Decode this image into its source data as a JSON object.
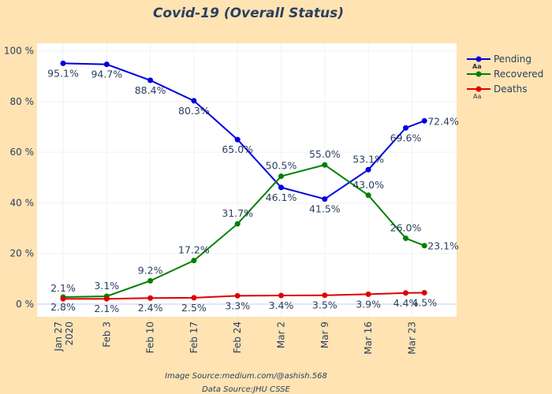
{
  "chart_data": {
    "type": "line",
    "title": "Covid-19 (Overall Status)",
    "xlabel": "",
    "ylabel": "",
    "x": [
      "2020-01-27",
      "2020-02-03",
      "2020-02-10",
      "2020-02-17",
      "2020-02-24",
      "2020-03-02",
      "2020-03-09",
      "2020-03-16",
      "2020-03-22",
      "2020-03-25"
    ],
    "x_ticks": [
      {
        "label": "Jan 27",
        "sub": "2020",
        "date": "2020-01-27"
      },
      {
        "label": "Feb 3",
        "date": "2020-02-03"
      },
      {
        "label": "Feb 10",
        "date": "2020-02-10"
      },
      {
        "label": "Feb 17",
        "date": "2020-02-17"
      },
      {
        "label": "Feb 24",
        "date": "2020-02-24"
      },
      {
        "label": "Mar 2",
        "date": "2020-03-02"
      },
      {
        "label": "Mar 9",
        "date": "2020-03-09"
      },
      {
        "label": "Mar 16",
        "date": "2020-03-16"
      },
      {
        "label": "Mar 23",
        "date": "2020-03-23"
      }
    ],
    "y_ticks": [
      "0 %",
      "20 %",
      "40 %",
      "60 %",
      "80 %",
      "100 %"
    ],
    "ylim": [
      -5,
      103
    ],
    "grid": true,
    "legend_position": "top-right",
    "series": [
      {
        "name": "Pending",
        "color": "#0000e0",
        "values": [
          95.1,
          94.7,
          88.4,
          80.3,
          65.0,
          46.1,
          41.5,
          53.1,
          69.6,
          72.4
        ],
        "labels": [
          "95.1%",
          "94.7%",
          "88.4%",
          "80.3%",
          "65.0%",
          "46.1%",
          "41.5%",
          "53.1%",
          "69.6%",
          "72.4%"
        ],
        "label_pos": [
          "below",
          "below",
          "below",
          "below",
          "below",
          "below",
          "below",
          "above",
          "below",
          "right"
        ]
      },
      {
        "name": "Recovered",
        "color": "#008000",
        "values": [
          2.8,
          3.1,
          9.2,
          17.2,
          31.7,
          50.5,
          55.0,
          43.0,
          26.0,
          23.1
        ],
        "labels": [
          "2.8%",
          "3.1%",
          "9.2%",
          "17.2%",
          "31.7%",
          "50.5%",
          "55.0%",
          "43.0%",
          "26.0%",
          "23.1%"
        ],
        "label_pos": [
          "below",
          "above",
          "above",
          "above",
          "above",
          "above",
          "above",
          "above",
          "above",
          "right"
        ]
      },
      {
        "name": "Deaths",
        "color": "#e00000",
        "values": [
          2.1,
          2.1,
          2.4,
          2.5,
          3.3,
          3.4,
          3.5,
          3.9,
          4.4,
          4.5
        ],
        "labels": [
          "2.1%",
          "2.1%",
          "2.4%",
          "2.5%",
          "3.3%",
          "3.4%",
          "3.5%",
          "3.9%",
          "4.4%",
          "4.5%"
        ],
        "label_pos": [
          "above",
          "below",
          "below",
          "below",
          "below",
          "below",
          "below",
          "below",
          "below",
          "below"
        ]
      }
    ],
    "annotations": [
      "Image Source:medium.com/@ashish.568",
      "Data Source:JHU CSSE"
    ],
    "legend_marker_text": "Aa"
  }
}
